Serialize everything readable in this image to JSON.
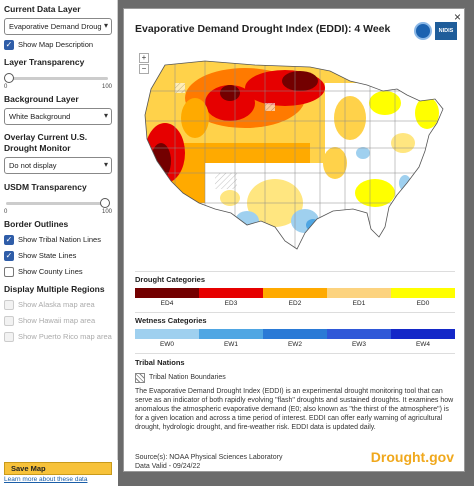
{
  "panel": {
    "current_layer_label": "Current Data Layer",
    "current_layer_value": "Evaporative Demand Droug",
    "show_map_description": "Show Map Description",
    "layer_transparency_label": "Layer Transparency",
    "layer_transparency_min": "0",
    "layer_transparency_max": "100",
    "layer_transparency_value": 0,
    "background_layer_label": "Background Layer",
    "background_layer_value": "White Background",
    "overlay_label": "Overlay Current U.S. Drought Monitor",
    "overlay_value": "Do not display",
    "usdm_transparency_label": "USDM Transparency",
    "usdm_transparency_min": "0",
    "usdm_transparency_max": "100",
    "usdm_transparency_value": 100,
    "border_outlines_label": "Border Outlines",
    "tribal_lines": "Show Tribal Nation Lines",
    "state_lines": "Show State Lines",
    "county_lines": "Show County Lines",
    "display_regions_label": "Display Multiple Regions",
    "alaska": "Show Alaska map area",
    "hawaii": "Show Hawaii map area",
    "puerto_rico": "Show Puerto Rico map area",
    "save_button": "Save Map",
    "learn_link": "Learn more about these data"
  },
  "modal": {
    "title": "Evaporative Demand Drought Index (EDDI): 4 Week",
    "close": "×",
    "nidis": "NIDIS",
    "zoom_in": "+",
    "zoom_out": "−",
    "drought_title": "Drought Categories",
    "drought_labels": [
      "ED4",
      "ED3",
      "ED2",
      "ED1",
      "ED0"
    ],
    "drought_colors": [
      "#730000",
      "#e60000",
      "#ffaa00",
      "#fcd37f",
      "#ffff00"
    ],
    "wetness_title": "Wetness Categories",
    "wetness_labels": [
      "EW0",
      "EW1",
      "EW2",
      "EW3",
      "EW4"
    ],
    "wetness_colors": [
      "#9fd0ef",
      "#4fa6e3",
      "#2a7ad6",
      "#2f58d8",
      "#1428c8"
    ],
    "tribal_title": "Tribal Nations",
    "tribal_label": "Tribal Nation Boundaries",
    "description": "The Evaporative Demand Drought Index (EDDI) is an experimental drought monitoring tool that can serve as an indicator of both rapidly evolving \"flash\" droughts and sustained droughts. It examines how anomalous the atmospheric evaporative demand (E0; also known as \"the thirst of the atmosphere\") is for a given location and across a time period of interest. EDDI can offer early warning of agricultural drought, hydrologic drought, and fire-weather risk. EDDI data is updated daily.",
    "source": "Source(s): NOAA Physical Sciences Laboratory",
    "valid": "Data Valid - 09/24/22",
    "brand": "Drought.gov"
  }
}
